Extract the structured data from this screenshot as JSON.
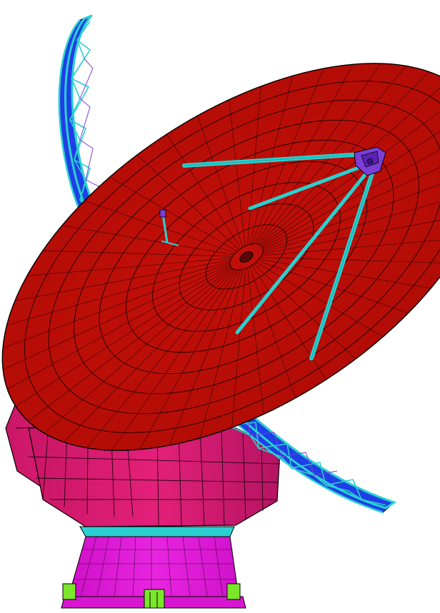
{
  "scene": {
    "subject": "finite-element-model-radio-telescope",
    "components": [
      {
        "name": "reflector-dish",
        "color": "#c41209"
      },
      {
        "name": "backup-structure-truss",
        "color": "#2ad0d0"
      },
      {
        "name": "quadripod-legs",
        "color": "#2ad0d0"
      },
      {
        "name": "subreflector-apex",
        "color": "#7b3fd6"
      },
      {
        "name": "elevation-wheel",
        "color": "#e07a22"
      },
      {
        "name": "counterweight",
        "color": "#1f3fe6"
      },
      {
        "name": "yoke-alidade",
        "color": "#d81c78"
      },
      {
        "name": "azimuth-base",
        "color": "#e617e0"
      },
      {
        "name": "base-feet",
        "color": "#7be62a"
      }
    ]
  }
}
